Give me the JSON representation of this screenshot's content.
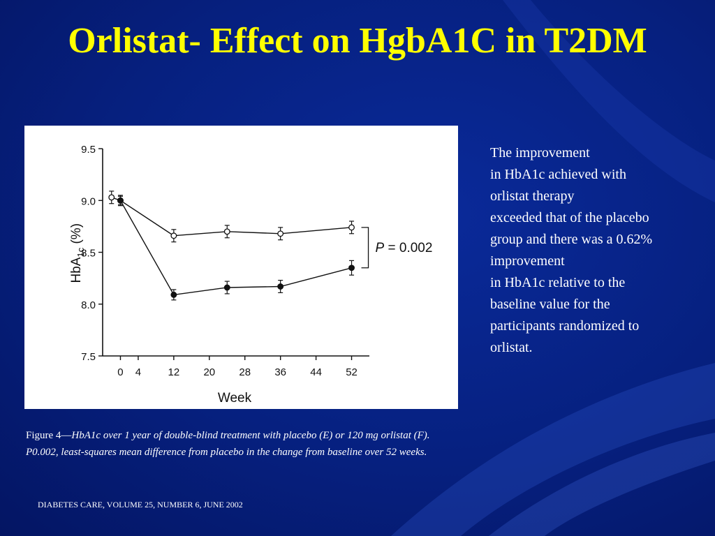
{
  "slide": {
    "title": "Orlistat- Effect on HgbA1C in T2DM",
    "background_color": "#06207f",
    "title_color": "#ffff00"
  },
  "side_text": [
    "The improvement",
    "in HbA1c achieved with",
    "orlistat therapy",
    "exceeded that of  the placebo",
    "group and there was a 0.62%",
    "improvement",
    "in HbA1c relative to the",
    "baseline value for the",
    "participants randomized to",
    "orlistat."
  ],
  "caption": {
    "line1_prefix": "Figure 4—",
    "line1_italic": "HbA1c over 1 year of  double-blind treatment with placebo (E) or 120 mg orlistat (F).",
    "line2": "P0.002, least-squares mean difference from placebo in the change from baseline over 52 weeks."
  },
  "footer": "DIABETES CARE, VOLUME 25, NUMBER 6, JUNE 2002",
  "chart_data": {
    "type": "line",
    "xlabel": "Week",
    "ylabel_main": "HbA",
    "ylabel_sub": "1c",
    "ylabel_suffix": " (%)",
    "xlim": [
      -4,
      56
    ],
    "ylim": [
      7.5,
      9.5
    ],
    "xticks": [
      0,
      4,
      12,
      20,
      28,
      36,
      44,
      52
    ],
    "yticks": [
      "7.5",
      "8.0",
      "8.5",
      "9.0",
      "9.5"
    ],
    "series": [
      {
        "marker": "open-circle",
        "x": [
          -2,
          0,
          12,
          24,
          36,
          52
        ],
        "y": [
          9.03,
          9.0,
          8.66,
          8.7,
          8.68,
          8.74
        ],
        "err": [
          0.06,
          0.05,
          0.06,
          0.06,
          0.06,
          0.06
        ]
      },
      {
        "marker": "filled-circle",
        "x": [
          0,
          12,
          24,
          36,
          52
        ],
        "y": [
          9.0,
          8.09,
          8.16,
          8.17,
          8.35
        ],
        "err": [
          0.04,
          0.05,
          0.06,
          0.06,
          0.07
        ]
      }
    ],
    "annotation": {
      "prefix": "P",
      "text": " = 0.002"
    }
  }
}
